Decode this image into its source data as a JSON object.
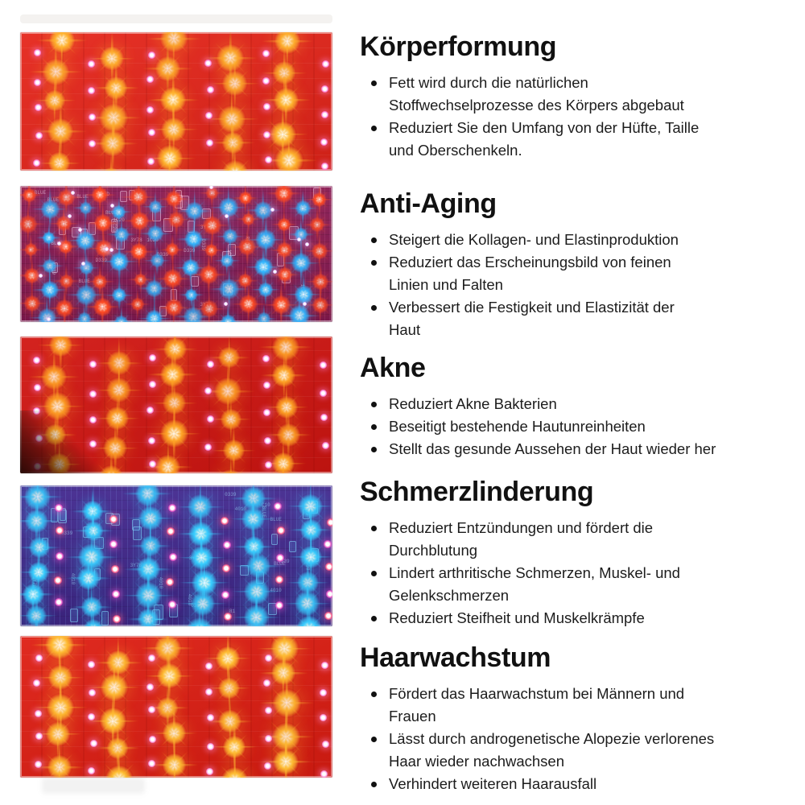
{
  "sections": [
    {
      "heading": "Körperformung",
      "bullets": [
        "Fett wird durch die natürlichen\nStoffwechselprozesse des Körpers abgebaut",
        "Reduziert Sie den Umfang von der Hüfte, Taille\nund Oberschenkeln."
      ],
      "photo": {
        "description": "red LED panel with glowing yellow star LEDs and small pink diodes",
        "style": "red",
        "bg": "#e5251a",
        "star": "#ffb42e",
        "dot": "#ff8ae0"
      }
    },
    {
      "heading": "Anti-Aging",
      "bullets": [
        "Steigert die Kollagen- und Elastinproduktion",
        "Reduziert das Erscheinungsbild von feinen\nLinien und Falten",
        "Verbessert die Festigkeit und Elastizität der\nHaut"
      ],
      "photo": {
        "description": "mixed red and blue LED panel on magenta circuit board",
        "style": "mixed",
        "bg": "#871a54",
        "star_red": "#ff4a22",
        "star_blue": "#2fb4ff",
        "dot": "#e9c0ff",
        "pcb_labels": [
          "D339",
          "BLUE",
          "RED",
          "0339",
          "3Y78",
          "1C20"
        ]
      }
    },
    {
      "heading": "Akne",
      "bullets": [
        "Reduziert Akne Bakterien",
        "Beseitigt bestehende Hautunreinheiten",
        "Stellt das gesunde Aussehen der Haut wieder her"
      ],
      "photo": {
        "description": "dark red LED panel with orange star LEDs and pink diodes",
        "style": "red",
        "bg": "#d11511",
        "star": "#ffa526",
        "dot": "#ff8ae0",
        "dark_corner": true
      }
    },
    {
      "heading": "Schmerzlinderung",
      "bullets": [
        "Reduziert Entzündungen und fördert die\nDurchblutung",
        "Lindert arthritische Schmerzen, Muskel- und\nGelenkschmerzen",
        "Reduziert Steifheit und Muskelkrämpfe"
      ],
      "photo": {
        "description": "blue-violet LED panel with cyan star LEDs and small pink diodes",
        "style": "blue",
        "bg": "#43298f",
        "star": "#37cdff",
        "dot_pink": "#ff5f8a",
        "dot_magenta": "#e957c8",
        "pcb_labels": [
          "3Y78",
          "BLUE",
          "0339",
          "C10",
          "4010",
          "81"
        ]
      }
    },
    {
      "heading": "Haarwachstum",
      "bullets": [
        "Fördert das Haarwachstum bei Männern und\nFrauen",
        "Lässt durch androgenetische Alopezie verlorenes\nHaar wieder nachwachsen",
        "Verhindert weiteren Haarausfall"
      ],
      "photo": {
        "description": "red LED panel with yellow star LEDs and pink diodes",
        "style": "red",
        "bg": "#de1d12",
        "star": "#ffc033",
        "dot": "#ff9ae4"
      }
    }
  ]
}
